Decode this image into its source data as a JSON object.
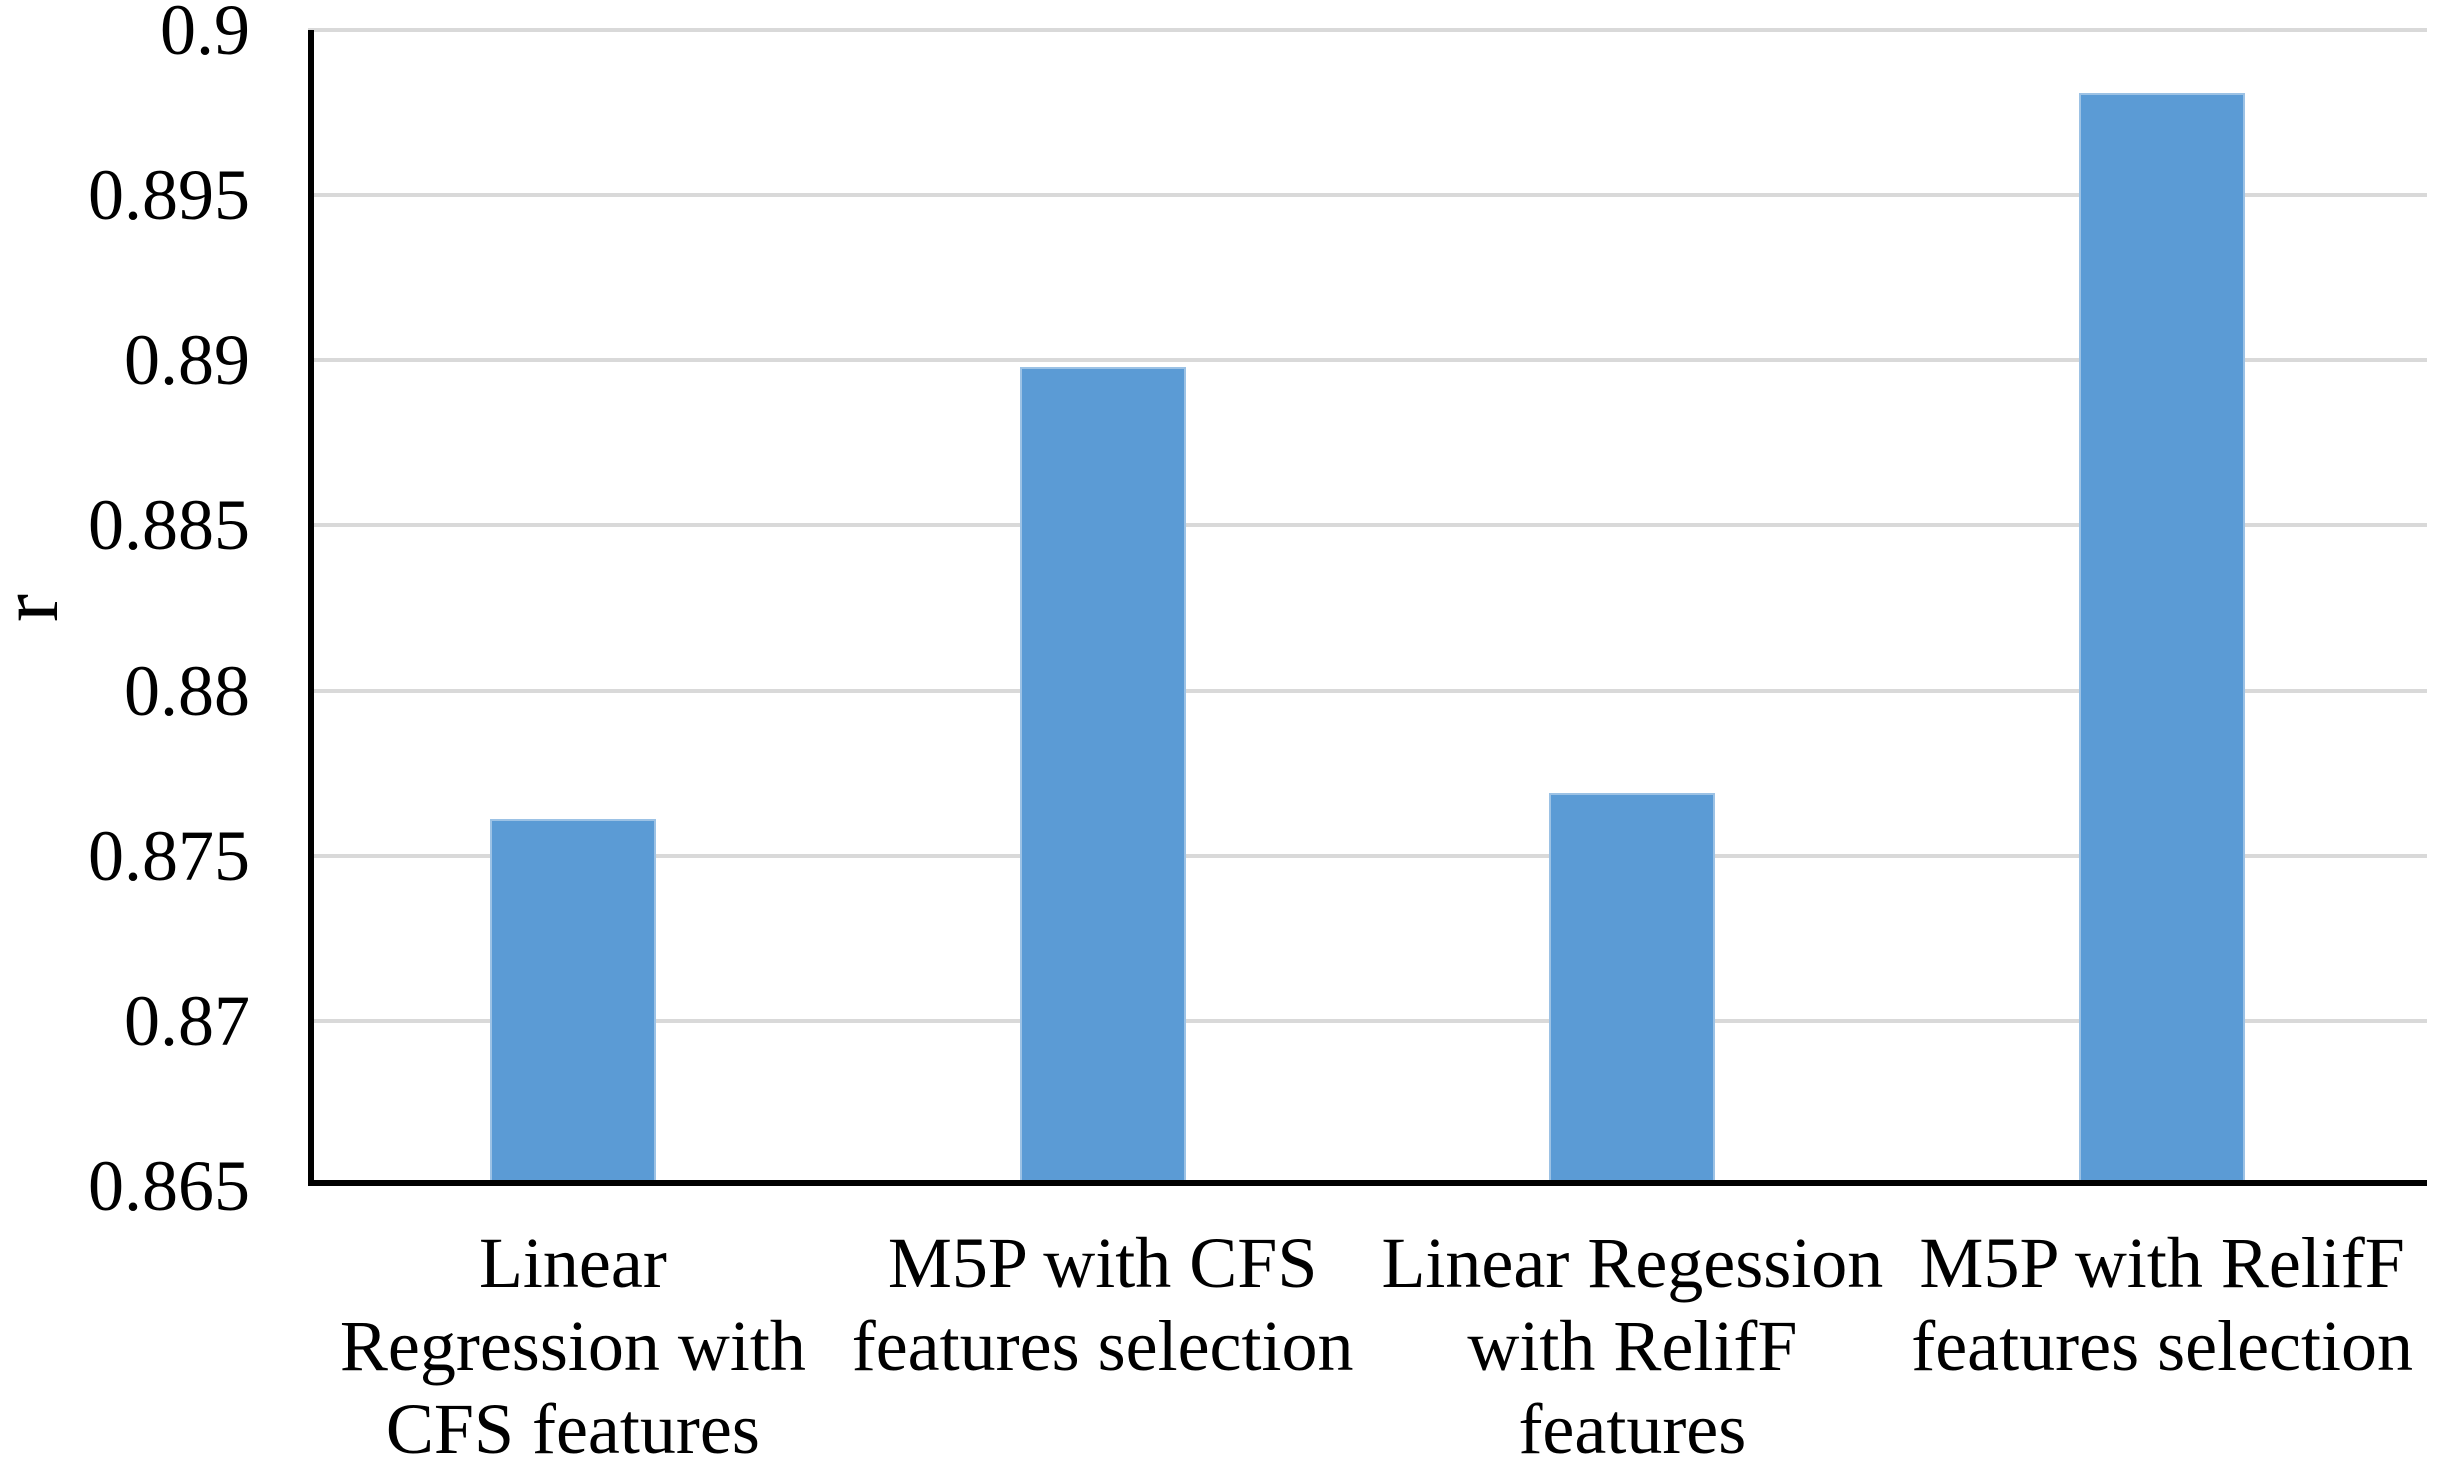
{
  "chart_data": {
    "type": "bar",
    "title": "",
    "xlabel": "",
    "ylabel": "r",
    "categories": [
      "Linear Regression with CFS features",
      "M5P with CFS features selection",
      "Linear Regession with RelifF features",
      "M5P with RelifF features selection"
    ],
    "category_lines": [
      [
        "Linear",
        "Regression with",
        "CFS features"
      ],
      [
        "M5P with CFS",
        "features selection"
      ],
      [
        "Linear Regession",
        "with RelifF",
        "features"
      ],
      [
        "M5P with RelifF",
        "features selection"
      ]
    ],
    "values": [
      0.8761,
      0.8898,
      0.8769,
      0.8981
    ],
    "y_ticks": [
      "0.9",
      "0.895",
      "0.89",
      "0.885",
      "0.88",
      "0.875",
      "0.87",
      "0.865"
    ],
    "y_tick_values": [
      0.9,
      0.895,
      0.89,
      0.885,
      0.88,
      0.875,
      0.87,
      0.865
    ],
    "ylim": [
      0.865,
      0.9
    ],
    "grid": "horizontal-gridlines-on",
    "legend": "none",
    "bar_color": "#5B9BD5",
    "bar_border_color": "#9CC2E5",
    "gridline_color": "#D9D9D9",
    "axis_color": "#000000"
  }
}
